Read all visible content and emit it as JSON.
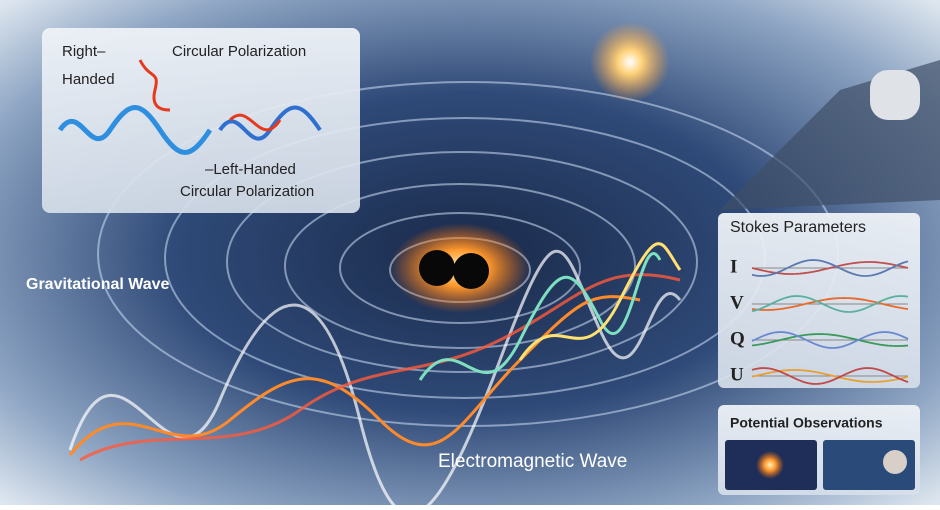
{
  "polarization_inset": {
    "right_handed": [
      "Right–",
      "Handed"
    ],
    "top_label": "Circular Polarization",
    "left_handed": [
      "–Left-Handed",
      "Circular Polarization"
    ]
  },
  "labels": {
    "gravitational_wave": "Gravitational Wave",
    "electromagnetic_wave": "Electromagnetic Wave"
  },
  "stokes": {
    "title": "Stokes Parameters",
    "parameters": [
      "I",
      "V",
      "Q",
      "U"
    ]
  },
  "observations": {
    "title": "Potential Observations"
  }
}
